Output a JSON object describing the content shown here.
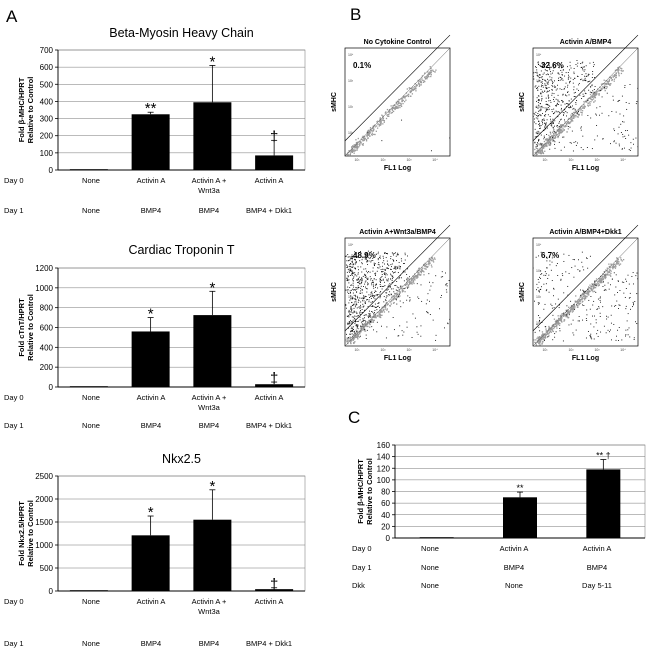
{
  "panel_labels": [
    "A",
    "B",
    "C"
  ],
  "chart_data": [
    {
      "type": "bar",
      "panel": "A",
      "title": "Beta-Myosin Heavy Chain",
      "ylabel": [
        "Fold β-MHC/HPRT",
        "Relative to Control"
      ],
      "ylim": [
        0,
        700
      ],
      "yticks": [
        0,
        100,
        200,
        300,
        400,
        500,
        600,
        700
      ],
      "categories": [
        "None / None",
        "Activin A / BMP4",
        "Activin A + Wnt3a / BMP4",
        "Activin A / BMP4 + Dkk1"
      ],
      "values": [
        2,
        325,
        395,
        85
      ],
      "errors": [
        0,
        12,
        215,
        88
      ],
      "annotations": [
        "",
        "**",
        "*",
        "†"
      ],
      "rows": [
        {
          "label": "Day 0",
          "cells": [
            "None",
            "Activin A",
            "Activin A +\nWnt3a",
            "Activin A"
          ]
        },
        {
          "label": "Day 1",
          "cells": [
            "None",
            "BMP4",
            "BMP4",
            "BMP4 + Dkk1"
          ]
        }
      ]
    },
    {
      "type": "bar",
      "panel": "A",
      "title": "Cardiac Troponin T",
      "ylabel": [
        "Fold cTnT/HPRT",
        "Relative to Control"
      ],
      "ylim": [
        0,
        1200
      ],
      "yticks": [
        0,
        200,
        400,
        600,
        800,
        1000,
        1200
      ],
      "categories": [
        "None / None",
        "Activin A / BMP4",
        "Activin A + Wnt3a / BMP4",
        "Activin A / BMP4 + Dkk1"
      ],
      "values": [
        2,
        560,
        725,
        28
      ],
      "errors": [
        0,
        140,
        240,
        22
      ],
      "annotations": [
        "",
        "*",
        "*",
        "†"
      ],
      "rows": [
        {
          "label": "Day 0",
          "cells": [
            "None",
            "Activin A",
            "Activin A +\nWnt3a",
            "Activin A"
          ]
        },
        {
          "label": "Day 1",
          "cells": [
            "None",
            "BMP4",
            "BMP4",
            "BMP4 + Dkk1"
          ]
        }
      ]
    },
    {
      "type": "bar",
      "panel": "A",
      "title": "Nkx2.5",
      "ylabel": [
        "Fold Nkx2.5/HPRT",
        "Relative to Control"
      ],
      "ylim": [
        0,
        2500
      ],
      "yticks": [
        0,
        500,
        1000,
        1500,
        2000,
        2500
      ],
      "categories": [
        "None / None",
        "Activin A / BMP4",
        "Activin A + Wnt3a / BMP4",
        "Activin A / BMP4 + Dkk1"
      ],
      "values": [
        5,
        1210,
        1550,
        40
      ],
      "errors": [
        0,
        420,
        650,
        30
      ],
      "annotations": [
        "",
        "*",
        "*",
        "†"
      ],
      "rows": [
        {
          "label": "Day 0",
          "cells": [
            "None",
            "Activin A",
            "Activin A +\nWnt3a",
            "Activin A"
          ]
        },
        {
          "label": "Day 1",
          "cells": [
            "None",
            "BMP4",
            "BMP4",
            "BMP4 + Dkk1"
          ]
        }
      ]
    },
    {
      "type": "bar",
      "panel": "C",
      "title": "",
      "ylabel": [
        "Fold β-MHC/HPRT",
        "Relative to Control"
      ],
      "ylim": [
        0,
        160
      ],
      "yticks": [
        0,
        20,
        40,
        60,
        80,
        100,
        120,
        140,
        160
      ],
      "categories": [
        "None / None / None",
        "Activin A / BMP4 / None",
        "Activin A / BMP4 / Day 5-11"
      ],
      "values": [
        1,
        70,
        118
      ],
      "errors": [
        0,
        9,
        17
      ],
      "annotations": [
        "",
        "**",
        "** †"
      ],
      "rows": [
        {
          "label": "Day 0",
          "cells": [
            "None",
            "Activin A",
            "Activin A"
          ]
        },
        {
          "label": "Day 1",
          "cells": [
            "None",
            "BMP4",
            "BMP4"
          ]
        },
        {
          "label": "Dkk",
          "cells": [
            "None",
            "None",
            "Day 5-11"
          ]
        }
      ]
    }
  ],
  "flow_panels": [
    {
      "title": "No Cytokine Control",
      "percent": "0.1%",
      "xlabel": "FL1 Log",
      "ylabel": "sMHC",
      "pattern": "control"
    },
    {
      "title": "Activin A/BMP4",
      "percent": "32.6%",
      "xlabel": "FL1 Log",
      "ylabel": "sMHC",
      "pattern": "high"
    },
    {
      "title": "Activin A+Wnt3a/BMP4",
      "percent": "48.9%",
      "xlabel": "FL1 Log",
      "ylabel": "sMHC",
      "pattern": "highest"
    },
    {
      "title": "Activin A/BMP4+Dkk1",
      "percent": "6.7%",
      "xlabel": "FL1 Log",
      "ylabel": "sMHC",
      "pattern": "low"
    }
  ],
  "flow_ticks": [
    "10⁴",
    "10³",
    "10²",
    "10¹"
  ],
  "colors": {
    "bar": "#000000",
    "axis": "#000000",
    "grid": "#888888",
    "dots": "#000000",
    "dense": "#9a9a9a"
  }
}
